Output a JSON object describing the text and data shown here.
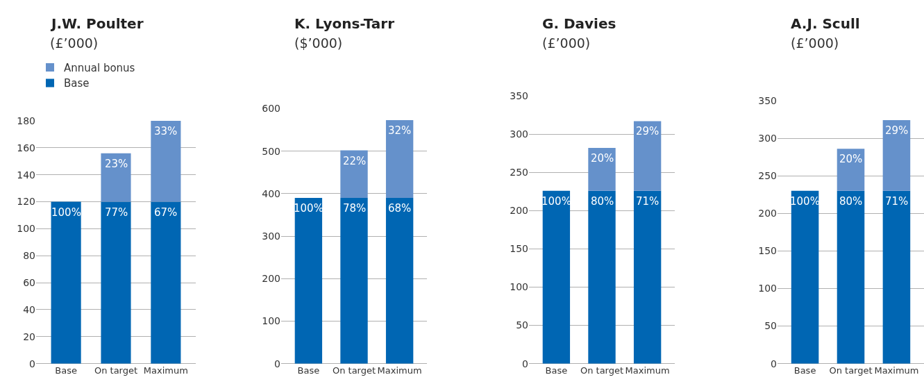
{
  "chart_data": [
    {
      "type": "bar",
      "title": "J.W. Poulter",
      "subtitle": "(£’000)",
      "categories": [
        "Base",
        "On target",
        "Maximum"
      ],
      "stacked": true,
      "legend": "top left",
      "grid": "y",
      "ylim": [
        0,
        180
      ],
      "yticks": [
        0,
        20,
        40,
        60,
        80,
        100,
        120,
        140,
        160,
        180
      ],
      "series": [
        {
          "name": "Base",
          "color": "#0066b3",
          "values": [
            120,
            120,
            120
          ]
        },
        {
          "name": "Annual bonus",
          "color": "#6591cb",
          "values": [
            null,
            36,
            60
          ]
        }
      ],
      "annotations": [
        {
          "text": "100%",
          "x": "Base",
          "y": 120
        },
        {
          "text": "77%",
          "x": "On target",
          "y": 120
        },
        {
          "text": "67%",
          "x": "Maximum",
          "y": 120
        },
        {
          "text": "23%",
          "x": "On target",
          "y": 156
        },
        {
          "text": "33%",
          "x": "Maximum",
          "y": 180
        }
      ]
    },
    {
      "type": "bar",
      "title": "K. Lyons-Tarr",
      "subtitle": "($’000)",
      "categories": [
        "Base",
        "On target",
        "Maximum"
      ],
      "stacked": true,
      "grid": "y",
      "ylim": [
        0,
        600
      ],
      "yticks": [
        0,
        100,
        200,
        300,
        400,
        500,
        600
      ],
      "series": [
        {
          "color": "#0066b3",
          "values": [
            390,
            390,
            390
          ]
        },
        {
          "color": "#6591cb",
          "values": [
            null,
            112,
            183
          ]
        }
      ],
      "annotations": [
        {
          "text": "100%",
          "x": "Base",
          "y": 390
        },
        {
          "text": "78%",
          "x": "On target",
          "y": 390
        },
        {
          "text": "68%",
          "x": "Maximum",
          "y": 390
        },
        {
          "text": "22%",
          "x": "On target",
          "y": 502
        },
        {
          "text": "32%",
          "x": "Maximum",
          "y": 573
        }
      ]
    },
    {
      "type": "bar",
      "title": "G. Davies",
      "subtitle": "(£’000)",
      "categories": [
        "Base",
        "On target",
        "Maximum"
      ],
      "stacked": true,
      "grid": "y",
      "ylim": [
        0,
        350
      ],
      "yticks": [
        0,
        50,
        100,
        150,
        200,
        250,
        300,
        350
      ],
      "series": [
        {
          "color": "#0066b3",
          "values": [
            226,
            226,
            226
          ]
        },
        {
          "color": "#6591cb",
          "values": [
            null,
            56,
            91
          ]
        }
      ],
      "annotations": [
        {
          "text": "100%",
          "x": "Base",
          "y": 226
        },
        {
          "text": "80%",
          "x": "On target",
          "y": 226
        },
        {
          "text": "71%",
          "x": "Maximum",
          "y": 226
        },
        {
          "text": "20%",
          "x": "On target",
          "y": 282
        },
        {
          "text": "29%",
          "x": "Maximum",
          "y": 317
        }
      ]
    },
    {
      "type": "bar",
      "title": "A.J. Scull",
      "subtitle": "(£’000)",
      "categories": [
        "Base",
        "On target",
        "Maximum"
      ],
      "stacked": true,
      "grid": "y",
      "ylim": [
        0,
        350
      ],
      "yticks": [
        0,
        50,
        100,
        150,
        200,
        250,
        300,
        350
      ],
      "series": [
        {
          "color": "#0066b3",
          "values": [
            230,
            230,
            230
          ]
        },
        {
          "color": "#6591cb",
          "values": [
            null,
            56,
            94
          ]
        }
      ],
      "annotations": [
        {
          "text": "100%",
          "x": "Base",
          "y": 230
        },
        {
          "text": "80%",
          "x": "On target",
          "y": 230
        },
        {
          "text": "71%",
          "x": "Maximum",
          "y": 230
        },
        {
          "text": "20%",
          "x": "On target",
          "y": 286
        },
        {
          "text": "29%",
          "x": "Maximum",
          "y": 324
        }
      ]
    }
  ]
}
